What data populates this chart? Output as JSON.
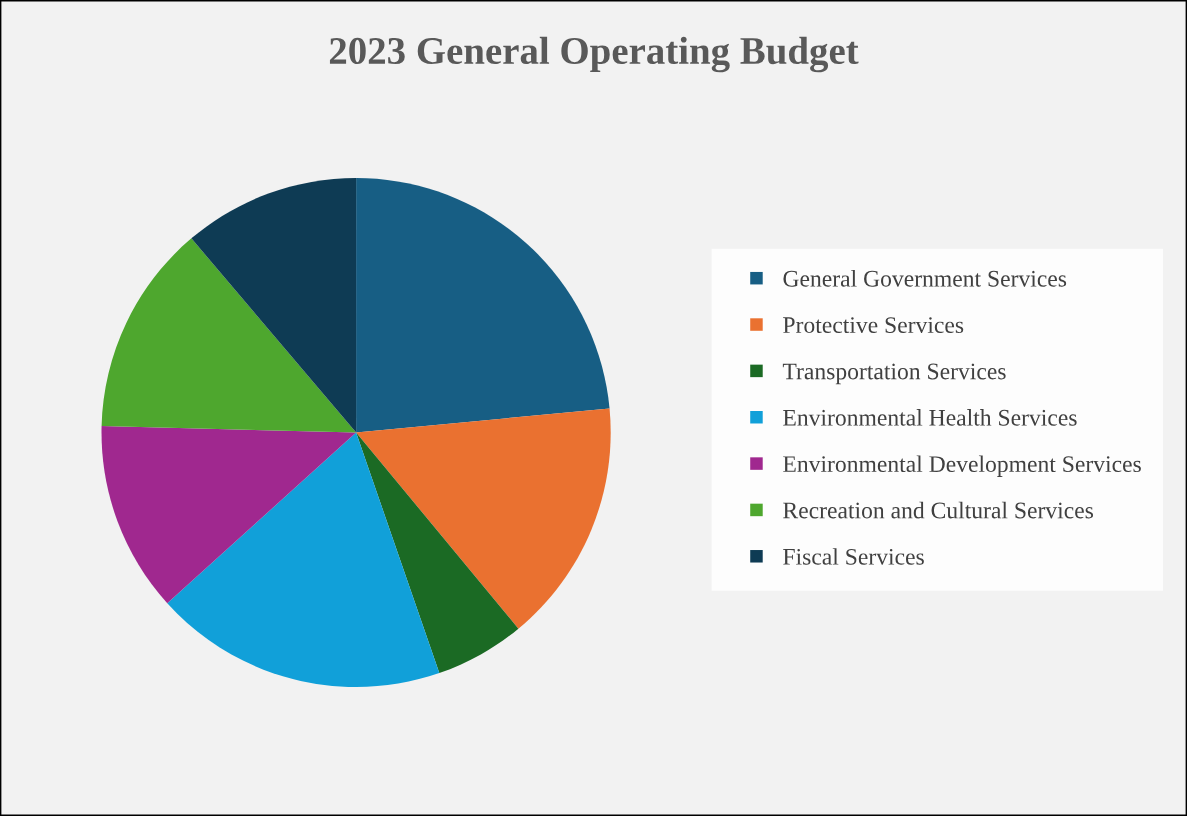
{
  "chart_data": {
    "type": "pie",
    "title": "2023 General Operating Budget",
    "categories": [
      "General Government Services",
      "Protective Services",
      "Transportation Services",
      "Environmental Health Services",
      "Environmental Development Services",
      "Recreation and Cultural Services",
      "Fiscal Services"
    ],
    "values": [
      23.5,
      15.5,
      5.7,
      18.6,
      12.1,
      13.4,
      11.2
    ],
    "colors": [
      "#175e84",
      "#ea7130",
      "#1b6a24",
      "#11a0d9",
      "#a0288f",
      "#4ea72e",
      "#0e3b54"
    ],
    "legend": "right"
  }
}
